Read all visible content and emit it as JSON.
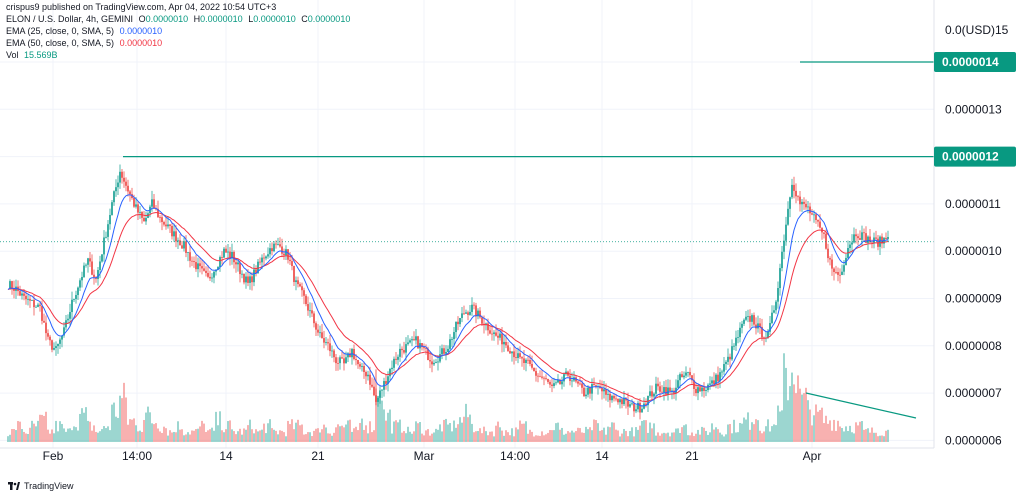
{
  "publish_line": "crispus9 published on TradingView.com, Apr 04, 2022 10:54 UTC+3",
  "legend": {
    "symbol": "ELON / U.S. Dollar, 4h, GEMINI",
    "open_label": "O",
    "open": "0.0000010",
    "high_label": "H",
    "high": "0.0000010",
    "low_label": "L",
    "low": "0.0000010",
    "close_label": "C",
    "close": "0.0000010",
    "ema25_label": "EMA (25, close, 0, SMA, 5)",
    "ema25_value": "0.0000010",
    "ema50_label": "EMA (50, close, 0, SMA, 5)",
    "ema50_value": "0.0000010",
    "vol_label": "Vol",
    "vol_value": "15.569B"
  },
  "brand": "TradingView",
  "colors": {
    "up": "#26a69a",
    "down": "#ef5350",
    "ema25": "#2962ff",
    "ema50": "#f23645",
    "level": "#089981",
    "grid": "#f0f3fa"
  },
  "chart_data": {
    "type": "candlestick",
    "title": "ELON / U.S. Dollar, 4h, GEMINI",
    "y_axis": {
      "currency_label": "0.0(USD)15",
      "ticks": [
        "0.0000014",
        "0.0000013",
        "0.0000012",
        "0.0000011",
        "0.0000010",
        "0.0000009",
        "0.0000008",
        "0.0000007",
        "0.0000006"
      ],
      "tick_values": [
        1.4e-06,
        1.3e-06,
        1.2e-06,
        1.1e-06,
        1e-06,
        9e-07,
        8e-07,
        7e-07,
        6e-07
      ],
      "highlighted": [
        "0.0000014",
        "0.0000012"
      ]
    },
    "x_axis": {
      "ticks": [
        "Feb",
        "14:00",
        "14",
        "21",
        "Mar",
        "14:00",
        "14",
        "21",
        "Apr"
      ]
    },
    "horizontal_levels": [
      1.4e-06,
      1.2e-06
    ],
    "current_price": 1.02e-06,
    "price_path": [
      9.3e-07,
      9.2e-07,
      9e-07,
      8.9e-07,
      8.8e-07,
      8.1e-07,
      7.9e-07,
      8.3e-07,
      8.9e-07,
      9.4e-07,
      9.8e-07,
      9.4e-07,
      1.02e-06,
      1.1e-06,
      1.17e-06,
      1.13e-06,
      1.09e-06,
      1.06e-06,
      1.1e-06,
      1.07e-06,
      1.05e-06,
      1.03e-06,
      1.01e-06,
      9.8e-07,
      9.6e-07,
      9.4e-07,
      9.7e-07,
      1e-06,
      9.9e-07,
      9.6e-07,
      9.3e-07,
      9.6e-07,
      9.9e-07,
      1.01e-06,
      1.01e-06,
      9.9e-07,
      9.3e-07,
      9e-07,
      8.6e-07,
      8.2e-07,
      8e-07,
      7.7e-07,
      7.6e-07,
      7.9e-07,
      7.5e-07,
      7.4e-07,
      6.8e-07,
      7.2e-07,
      7.6e-07,
      7.9e-07,
      8e-07,
      8.1e-07,
      7.9e-07,
      7.7e-07,
      7.8e-07,
      8e-07,
      8.4e-07,
      8.7e-07,
      8.8e-07,
      8.6e-07,
      8.4e-07,
      8.2e-07,
      8.1e-07,
      7.9e-07,
      7.7e-07,
      7.6e-07,
      7.4e-07,
      7.3e-07,
      7.1e-07,
      7.2e-07,
      7.4e-07,
      7.2e-07,
      7e-07,
      7.1e-07,
      7.1e-07,
      6.9e-07,
      6.9e-07,
      6.8e-07,
      6.7e-07,
      6.7e-07,
      6.9e-07,
      7.1e-07,
      7.1e-07,
      7e-07,
      7.3e-07,
      7.4e-07,
      7.1e-07,
      7.1e-07,
      7.2e-07,
      7.4e-07,
      7.7e-07,
      8.1e-07,
      8.5e-07,
      8.6e-07,
      8.3e-07,
      8.2e-07,
      9e-07,
      1.03e-06,
      1.15e-06,
      1.1e-06,
      1.09e-06,
      1.06e-06,
      1.03e-06,
      9.6e-07,
      9.5e-07,
      1.01e-06,
      1.04e-06,
      1.03e-06,
      1.02e-06,
      1.02e-06,
      1.03e-06
    ],
    "volume_path": [
      2,
      3,
      2,
      3,
      4,
      2,
      3,
      2,
      4,
      5,
      3,
      2,
      3,
      6,
      8,
      4,
      3,
      5,
      4,
      3,
      2,
      3,
      2,
      2,
      3,
      2,
      4,
      3,
      2,
      2,
      3,
      2,
      3,
      2,
      2,
      3,
      3,
      2,
      2,
      3,
      2,
      3,
      3,
      2,
      4,
      3,
      12,
      5,
      3,
      3,
      2,
      3,
      2,
      2,
      3,
      3,
      4,
      5,
      3,
      2,
      2,
      3,
      2,
      2,
      3,
      2,
      2,
      2,
      3,
      2,
      2,
      2,
      2,
      3,
      2,
      3,
      2,
      2,
      2,
      3,
      3,
      2,
      2,
      2,
      3,
      2,
      2,
      2,
      3,
      2,
      3,
      3,
      4,
      5,
      3,
      3,
      5,
      12,
      14,
      8,
      6,
      5,
      4,
      4,
      3,
      3,
      3,
      2,
      2,
      2,
      2
    ],
    "volume_trend_line": {
      "from_index": 99,
      "to_index": 110,
      "note": ""
    }
  }
}
